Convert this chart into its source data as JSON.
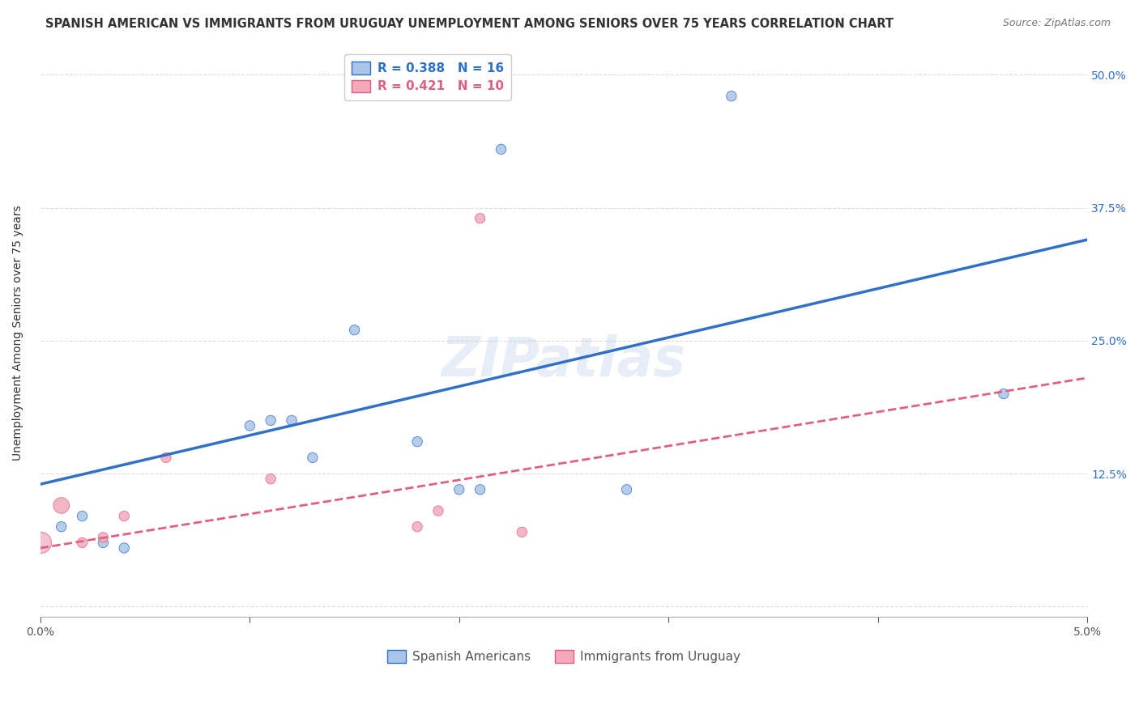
{
  "title": "SPANISH AMERICAN VS IMMIGRANTS FROM URUGUAY UNEMPLOYMENT AMONG SENIORS OVER 75 YEARS CORRELATION CHART",
  "source": "Source: ZipAtlas.com",
  "ylabel": "Unemployment Among Seniors over 75 years",
  "background_color": "#ffffff",
  "watermark": "ZIPatlas",
  "blue_x": [
    0.001,
    0.002,
    0.003,
    0.004,
    0.01,
    0.011,
    0.012,
    0.013,
    0.015,
    0.018,
    0.02,
    0.021,
    0.022,
    0.028,
    0.033,
    0.046
  ],
  "blue_y": [
    0.075,
    0.085,
    0.06,
    0.055,
    0.17,
    0.175,
    0.175,
    0.14,
    0.26,
    0.155,
    0.11,
    0.11,
    0.43,
    0.11,
    0.48,
    0.2
  ],
  "blue_sizes": [
    80,
    80,
    80,
    80,
    80,
    80,
    80,
    80,
    80,
    80,
    80,
    80,
    80,
    80,
    80,
    80
  ],
  "pink_x": [
    0.001,
    0.002,
    0.003,
    0.004,
    0.006,
    0.011,
    0.018,
    0.019,
    0.021,
    0.023
  ],
  "pink_y": [
    0.095,
    0.06,
    0.065,
    0.085,
    0.14,
    0.12,
    0.075,
    0.09,
    0.365,
    0.07
  ],
  "pink_sizes": [
    200,
    80,
    80,
    80,
    80,
    80,
    80,
    80,
    80,
    80
  ],
  "blue_color": "#a8c4e8",
  "pink_color": "#f2aabb",
  "blue_line_color": "#3070c8",
  "pink_line_color": "#e06080",
  "blue_R": 0.388,
  "blue_N": 16,
  "pink_R": 0.421,
  "pink_N": 10,
  "blue_trend_x0": 0.0,
  "blue_trend_y0": 0.115,
  "blue_trend_x1": 0.05,
  "blue_trend_y1": 0.345,
  "pink_trend_x0": 0.0,
  "pink_trend_y0": 0.055,
  "pink_trend_x1": 0.05,
  "pink_trend_y1": 0.215,
  "xlim": [
    0.0,
    0.05
  ],
  "ylim": [
    -0.01,
    0.525
  ],
  "xticks": [
    0.0,
    0.01,
    0.02,
    0.03,
    0.04,
    0.05
  ],
  "xticklabels": [
    "0.0%",
    "",
    "",
    "",
    "",
    "5.0%"
  ],
  "ytick_positions": [
    0.0,
    0.125,
    0.25,
    0.375,
    0.5
  ],
  "ytick_labels": [
    "",
    "12.5%",
    "25.0%",
    "37.5%",
    "50.0%"
  ],
  "grid_color": "#cccccc",
  "grid_alpha": 0.7,
  "legend_blue_label": "Spanish Americans",
  "legend_pink_label": "Immigrants from Uruguay",
  "title_fontsize": 10.5,
  "source_fontsize": 9,
  "axis_label_fontsize": 10,
  "tick_fontsize": 10,
  "legend_fontsize": 11,
  "watermark_fontsize": 48,
  "watermark_color": "#c8d8ee",
  "watermark_alpha": 0.45
}
